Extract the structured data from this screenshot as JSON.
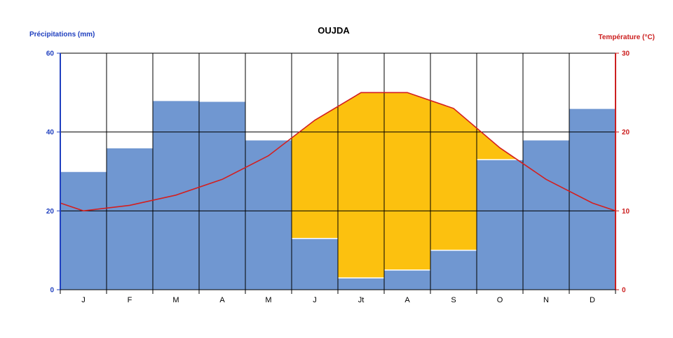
{
  "chart_data": {
    "type": "bar",
    "title": "OUJDA",
    "ylabel_left": "Précipitations (mm)",
    "ylabel_right": "Température (°C)",
    "categories": [
      "J",
      "F",
      "M",
      "A",
      "M",
      "J",
      "Jt",
      "A",
      "S",
      "O",
      "N",
      "D"
    ],
    "ylim_left": [
      0,
      60
    ],
    "ylim_right": [
      0,
      30
    ],
    "yticks_left": [
      "0",
      "20",
      "40",
      "60"
    ],
    "yticks_right": [
      "0",
      "10",
      "20",
      "30"
    ],
    "grid": true,
    "series": [
      {
        "name": "Précipitations (mm)",
        "kind": "bar",
        "axis": "left",
        "color": "#7097d1",
        "values": [
          30,
          36,
          48,
          47.8,
          38,
          13,
          3,
          5,
          10,
          33,
          38,
          46
        ]
      },
      {
        "name": "Température (°C)",
        "kind": "line",
        "axis": "right",
        "color": "#d31f1f",
        "values": [
          10,
          10.7,
          12,
          14,
          17,
          21.5,
          25,
          25,
          23,
          18,
          14,
          11
        ]
      }
    ],
    "dry_period_fill": "#fcc10f",
    "temperature_edges": {
      "start": 11,
      "end": 10
    }
  }
}
